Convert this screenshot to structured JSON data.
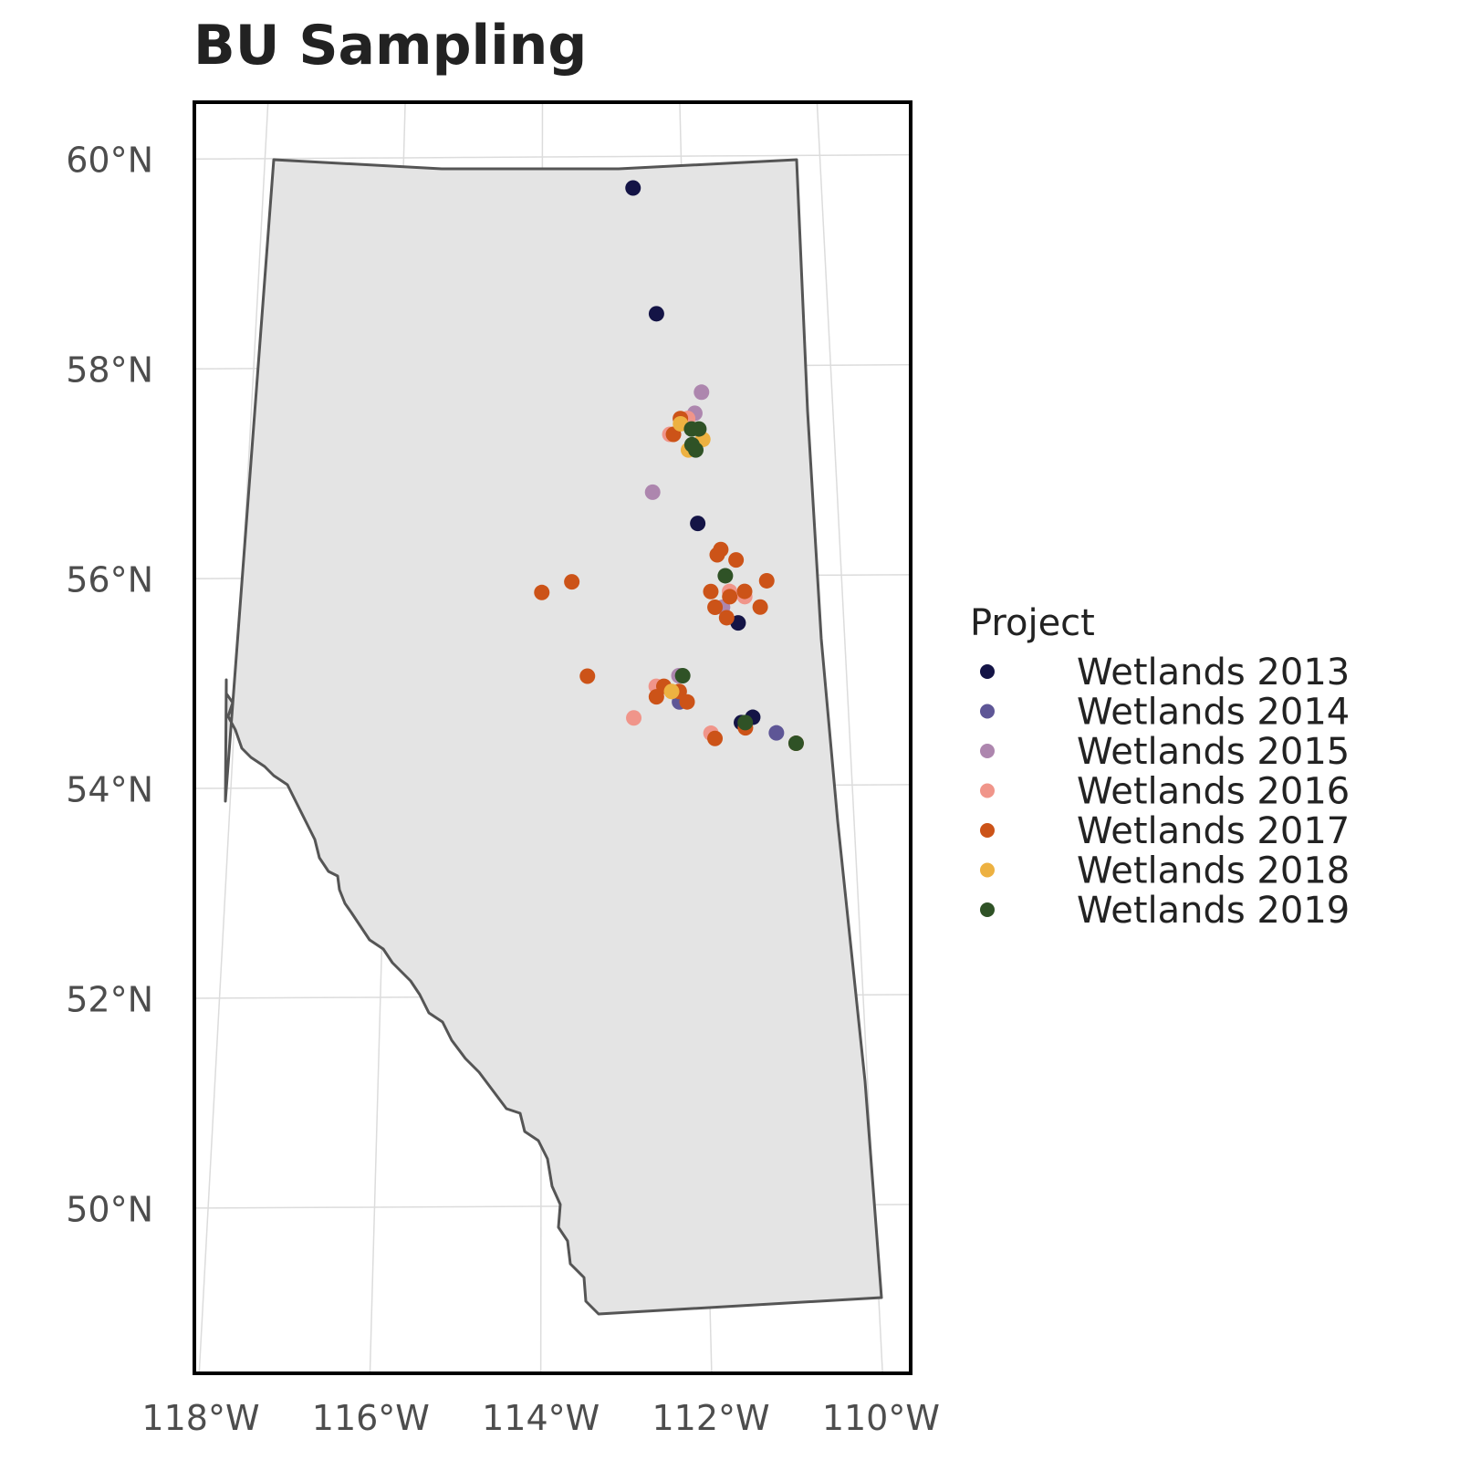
{
  "title": "BU Sampling",
  "axes": {
    "lat_ticks": [
      "60°N",
      "58°N",
      "56°N",
      "54°N",
      "52°N",
      "50°N"
    ],
    "lon_ticks": [
      "118°W",
      "116°W",
      "114°W",
      "112°W",
      "110°W"
    ]
  },
  "legend": {
    "title": "Project",
    "placement": "right"
  },
  "chart_data": {
    "type": "scatter",
    "title": "BU Sampling",
    "x_axis": "longitude",
    "y_axis": "latitude",
    "region": "Alberta",
    "xlim": [
      -120,
      -110
    ],
    "ylim": [
      49,
      60
    ],
    "grid": true,
    "legend_placement": "right",
    "series": [
      {
        "name": "Wetlands 2013",
        "color": "#141446",
        "points": [
          [
            -112.7,
            59.7
          ],
          [
            -112.4,
            58.5
          ],
          [
            -111.9,
            56.5
          ],
          [
            -111.4,
            55.55
          ],
          [
            -111.4,
            54.6
          ],
          [
            -111.25,
            54.65
          ]
        ]
      },
      {
        "name": "Wetlands 2014",
        "color": "#5e5696",
        "points": [
          [
            -112.2,
            54.8
          ],
          [
            -110.95,
            54.5
          ]
        ]
      },
      {
        "name": "Wetlands 2015",
        "color": "#ad86ae",
        "points": [
          [
            -111.8,
            57.75
          ],
          [
            -111.9,
            57.55
          ],
          [
            -112.5,
            56.8
          ],
          [
            -112.2,
            55.05
          ],
          [
            -111.6,
            55.7
          ]
        ]
      },
      {
        "name": "Wetlands 2016",
        "color": "#f0958a",
        "points": [
          [
            -112.25,
            57.35
          ],
          [
            -112.0,
            57.5
          ],
          [
            -112.8,
            54.65
          ],
          [
            -111.8,
            54.5
          ],
          [
            -112.5,
            54.95
          ],
          [
            -111.5,
            55.85
          ],
          [
            -111.3,
            55.8
          ]
        ]
      },
      {
        "name": "Wetlands 2017",
        "color": "#cc5318",
        "points": [
          [
            -112.1,
            57.5
          ],
          [
            -112.2,
            57.35
          ],
          [
            -111.6,
            56.25
          ],
          [
            -111.4,
            56.15
          ],
          [
            -111.65,
            56.2
          ],
          [
            -111.5,
            55.8
          ],
          [
            -111.3,
            55.85
          ],
          [
            -111.75,
            55.85
          ],
          [
            -111.0,
            55.95
          ],
          [
            -111.1,
            55.7
          ],
          [
            -111.7,
            55.7
          ],
          [
            -111.55,
            55.6
          ],
          [
            -114.0,
            55.85
          ],
          [
            -113.6,
            55.95
          ],
          [
            -113.4,
            55.05
          ],
          [
            -112.5,
            54.85
          ],
          [
            -112.4,
            54.95
          ],
          [
            -112.2,
            54.9
          ],
          [
            -112.1,
            54.8
          ],
          [
            -111.75,
            54.45
          ],
          [
            -111.35,
            54.55
          ],
          [
            -110.7,
            54.4
          ]
        ]
      },
      {
        "name": "Wetlands 2018",
        "color": "#edb141",
        "points": [
          [
            -112.3,
            54.9
          ],
          [
            -112.0,
            57.2
          ],
          [
            -111.8,
            57.3
          ],
          [
            -112.1,
            57.45
          ]
        ]
      },
      {
        "name": "Wetlands 2019",
        "color": "#2f5226",
        "points": [
          [
            -111.95,
            57.4
          ],
          [
            -111.85,
            57.4
          ],
          [
            -111.95,
            57.25
          ],
          [
            -111.9,
            57.2
          ],
          [
            -111.55,
            56.0
          ],
          [
            -112.15,
            55.05
          ],
          [
            -111.35,
            54.6
          ],
          [
            -110.7,
            54.4
          ]
        ]
      }
    ]
  }
}
